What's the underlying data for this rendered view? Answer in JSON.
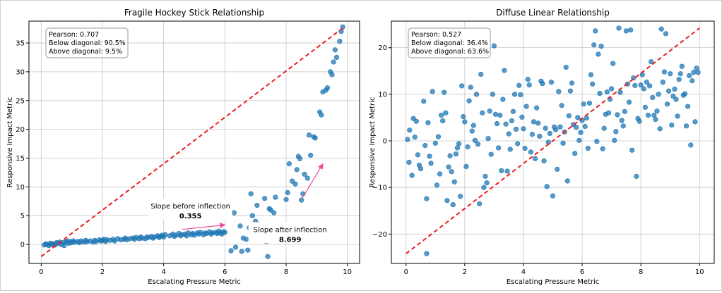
{
  "chart_data": [
    {
      "type": "scatter",
      "title": "Fragile Hockey Stick Relationship",
      "xlabel": "Escalating Pressure Metric",
      "ylabel": "Responsive Impact Metric",
      "xlim": [
        -0.4,
        10.4
      ],
      "ylim": [
        -3.3,
        38.8
      ],
      "xticks": [
        0,
        2,
        4,
        6,
        8,
        10
      ],
      "yticks": [
        0,
        5,
        10,
        15,
        20,
        25,
        30,
        35
      ],
      "grid": true,
      "point_color": "#1f77b4",
      "reference_line": {
        "x": [
          0,
          9.9
        ],
        "y": [
          -2.1,
          37.8
        ],
        "color": "#ee1c1c",
        "style": "dashed",
        "label": "diagonal"
      },
      "stats_box": [
        "Pearson: 0.707",
        "Below diagonal: 90.5%",
        "Above diagonal: 9.5%"
      ],
      "annotations": [
        {
          "label": "Slope before inflection",
          "value": "0.355",
          "arrow_from": [
            4.6,
            2.6
          ],
          "arrow_to": [
            6.0,
            3.4
          ],
          "arrow_color": "#e8519a"
        },
        {
          "label": "Slope after inflection",
          "value": "8.699",
          "arrow_from": [
            8.5,
            7.8
          ],
          "arrow_to": [
            9.2,
            14.0
          ],
          "arrow_color": "#e8519a"
        }
      ],
      "points": [
        [
          0.1,
          -0.1
        ],
        [
          0.15,
          0.1
        ],
        [
          0.2,
          0.0
        ],
        [
          0.25,
          -0.2
        ],
        [
          0.3,
          0.2
        ],
        [
          0.35,
          0.0
        ],
        [
          0.4,
          0.1
        ],
        [
          0.45,
          -0.1
        ],
        [
          0.5,
          0.3
        ],
        [
          0.55,
          0.2
        ],
        [
          0.6,
          0.4
        ],
        [
          0.65,
          0.0
        ],
        [
          0.7,
          0.3
        ],
        [
          0.75,
          -0.2
        ],
        [
          0.8,
          0.4
        ],
        [
          0.85,
          0.6
        ],
        [
          0.9,
          0.2
        ],
        [
          0.95,
          0.5
        ],
        [
          1.0,
          0.3
        ],
        [
          1.05,
          0.6
        ],
        [
          1.1,
          0.4
        ],
        [
          1.2,
          0.5
        ],
        [
          1.25,
          0.3
        ],
        [
          1.3,
          0.6
        ],
        [
          1.4,
          0.4
        ],
        [
          1.45,
          0.7
        ],
        [
          1.5,
          0.5
        ],
        [
          1.6,
          0.6
        ],
        [
          1.7,
          0.4
        ],
        [
          1.75,
          0.7
        ],
        [
          1.8,
          0.5
        ],
        [
          1.9,
          0.8
        ],
        [
          1.95,
          0.6
        ],
        [
          2.0,
          0.7
        ],
        [
          2.05,
          0.9
        ],
        [
          2.1,
          0.5
        ],
        [
          2.15,
          0.8
        ],
        [
          2.25,
          0.7
        ],
        [
          2.35,
          0.9
        ],
        [
          2.4,
          0.6
        ],
        [
          2.5,
          1.0
        ],
        [
          2.6,
          0.8
        ],
        [
          2.7,
          0.9
        ],
        [
          2.75,
          1.1
        ],
        [
          2.8,
          0.8
        ],
        [
          2.9,
          1.0
        ],
        [
          3.0,
          1.1
        ],
        [
          3.05,
          0.9
        ],
        [
          3.1,
          1.2
        ],
        [
          3.2,
          1.0
        ],
        [
          3.25,
          1.3
        ],
        [
          3.3,
          1.1
        ],
        [
          3.4,
          1.0
        ],
        [
          3.45,
          1.3
        ],
        [
          3.5,
          1.2
        ],
        [
          3.6,
          1.4
        ],
        [
          3.65,
          1.1
        ],
        [
          3.7,
          1.3
        ],
        [
          3.8,
          1.5
        ],
        [
          3.85,
          1.2
        ],
        [
          3.9,
          1.4
        ],
        [
          3.95,
          1.6
        ],
        [
          4.0,
          1.3
        ],
        [
          4.05,
          1.7
        ],
        [
          4.2,
          1.5
        ],
        [
          4.3,
          1.8
        ],
        [
          4.35,
          1.4
        ],
        [
          4.4,
          1.6
        ],
        [
          4.5,
          1.9
        ],
        [
          4.55,
          1.5
        ],
        [
          4.6,
          1.7
        ],
        [
          4.7,
          1.8
        ],
        [
          4.75,
          1.5
        ],
        [
          4.8,
          2.0
        ],
        [
          4.9,
          1.7
        ],
        [
          4.95,
          1.9
        ],
        [
          5.0,
          1.6
        ],
        [
          5.1,
          2.0
        ],
        [
          5.15,
          1.8
        ],
        [
          5.2,
          2.1
        ],
        [
          5.3,
          1.7
        ],
        [
          5.35,
          2.0
        ],
        [
          5.4,
          1.9
        ],
        [
          5.5,
          2.2
        ],
        [
          5.55,
          1.8
        ],
        [
          5.6,
          2.0
        ],
        [
          5.7,
          2.1
        ],
        [
          5.75,
          1.9
        ],
        [
          5.8,
          2.3
        ],
        [
          5.85,
          2.0
        ],
        [
          5.9,
          1.8
        ],
        [
          5.95,
          2.2
        ],
        [
          6.0,
          2.1
        ],
        [
          6.2,
          -1.1
        ],
        [
          6.3,
          5.5
        ],
        [
          6.35,
          -0.5
        ],
        [
          6.5,
          3.2
        ],
        [
          6.55,
          -1.2
        ],
        [
          6.6,
          1.1
        ],
        [
          6.7,
          0.9
        ],
        [
          6.75,
          -1.0
        ],
        [
          6.8,
          2.9
        ],
        [
          6.85,
          8.8
        ],
        [
          6.9,
          5.0
        ],
        [
          7.0,
          4.0
        ],
        [
          7.05,
          6.8
        ],
        [
          7.1,
          3.5
        ],
        [
          7.2,
          2.4
        ],
        [
          7.25,
          1.0
        ],
        [
          7.3,
          8.0
        ],
        [
          7.35,
          0.5
        ],
        [
          7.4,
          -2.1
        ],
        [
          7.45,
          6.2
        ],
        [
          7.5,
          6.0
        ],
        [
          7.6,
          5.5
        ],
        [
          7.65,
          8.2
        ],
        [
          8.0,
          7.8
        ],
        [
          8.05,
          9.0
        ],
        [
          8.1,
          14.0
        ],
        [
          8.2,
          11.0
        ],
        [
          8.3,
          10.5
        ],
        [
          8.35,
          13.0
        ],
        [
          8.4,
          15.3
        ],
        [
          8.45,
          14.9
        ],
        [
          8.5,
          7.7
        ],
        [
          8.55,
          8.8
        ],
        [
          8.6,
          12.2
        ],
        [
          8.7,
          11.5
        ],
        [
          8.75,
          19.0
        ],
        [
          8.8,
          15.5
        ],
        [
          8.9,
          18.7
        ],
        [
          8.95,
          18.5
        ],
        [
          9.1,
          23.0
        ],
        [
          9.15,
          22.5
        ],
        [
          9.2,
          26.5
        ],
        [
          9.3,
          26.8
        ],
        [
          9.35,
          27.2
        ],
        [
          9.45,
          30.0
        ],
        [
          9.5,
          29.5
        ],
        [
          9.55,
          31.7
        ],
        [
          9.6,
          33.8
        ],
        [
          9.65,
          32.5
        ],
        [
          9.75,
          35.3
        ],
        [
          9.8,
          37.0
        ],
        [
          9.85,
          37.8
        ]
      ]
    },
    {
      "type": "scatter",
      "title": "Diffuse Linear Relationship",
      "xlabel": "Escalating Pressure Metric",
      "ylabel": "Responsive Impact Metric",
      "xlim": [
        -0.5,
        10.5
      ],
      "ylim": [
        -26.3,
        25.7
      ],
      "xticks": [
        0,
        2,
        4,
        6,
        8,
        10
      ],
      "yticks": [
        -20,
        -10,
        0,
        10,
        20
      ],
      "ytick_labels": [
        "−20",
        "−10",
        "0",
        "10",
        "20"
      ],
      "grid": true,
      "point_color": "#1f77b4",
      "reference_line": {
        "x": [
          0,
          10
        ],
        "y": [
          -24.2,
          24.2
        ],
        "color": "#ee1c1c",
        "style": "dashed",
        "label": "diagonal"
      },
      "stats_box": [
        "Pearson: 0.527",
        "Below diagonal: 36.4%",
        "Above diagonal: 63.6%"
      ],
      "points": [
        [
          0.05,
          0.3
        ],
        [
          0.1,
          -4.6
        ],
        [
          0.12,
          2.3
        ],
        [
          0.2,
          -7.4
        ],
        [
          0.25,
          4.8
        ],
        [
          0.3,
          0.8
        ],
        [
          0.35,
          4.2
        ],
        [
          0.4,
          -3.0
        ],
        [
          0.45,
          -5.2
        ],
        [
          0.5,
          -6.0
        ],
        [
          0.6,
          8.5
        ],
        [
          0.65,
          -1.0
        ],
        [
          0.7,
          -12.4
        ],
        [
          0.75,
          3.9
        ],
        [
          0.8,
          -3.3
        ],
        [
          0.85,
          -4.8
        ],
        [
          0.7,
          -24.2
        ],
        [
          0.9,
          10.6
        ],
        [
          1.0,
          -0.5
        ],
        [
          1.05,
          -9.5
        ],
        [
          1.1,
          0.9
        ],
        [
          1.15,
          -7.1
        ],
        [
          1.2,
          5.5
        ],
        [
          1.25,
          4.3
        ],
        [
          1.3,
          10.4
        ],
        [
          1.35,
          6.0
        ],
        [
          1.4,
          -12.8
        ],
        [
          1.45,
          -5.6
        ],
        [
          1.5,
          -3.2
        ],
        [
          1.55,
          -6.6
        ],
        [
          1.6,
          -13.7
        ],
        [
          1.65,
          -8.8
        ],
        [
          1.7,
          -2.8
        ],
        [
          1.75,
          -1.5
        ],
        [
          1.8,
          -0.6
        ],
        [
          1.85,
          -11.9
        ],
        [
          1.9,
          11.8
        ],
        [
          1.95,
          5.2
        ],
        [
          2.0,
          4.1
        ],
        [
          2.05,
          -5.5
        ],
        [
          2.1,
          -1.3
        ],
        [
          2.15,
          8.6
        ],
        [
          2.2,
          11.5
        ],
        [
          2.25,
          2.1
        ],
        [
          2.3,
          3.3
        ],
        [
          2.35,
          0.1
        ],
        [
          2.4,
          10.0
        ],
        [
          2.45,
          -0.7
        ],
        [
          2.5,
          -13.5
        ],
        [
          2.55,
          14.3
        ],
        [
          2.6,
          6.0
        ],
        [
          2.65,
          -10.0
        ],
        [
          2.7,
          -7.6
        ],
        [
          2.75,
          -9.0
        ],
        [
          2.8,
          0.5
        ],
        [
          2.85,
          6.4
        ],
        [
          2.9,
          -2.9
        ],
        [
          2.95,
          10.0
        ],
        [
          3.0,
          20.4
        ],
        [
          3.05,
          5.7
        ],
        [
          3.1,
          3.7
        ],
        [
          3.15,
          -1.5
        ],
        [
          3.2,
          5.5
        ],
        [
          3.25,
          -6.4
        ],
        [
          3.3,
          8.9
        ],
        [
          3.35,
          15.1
        ],
        [
          3.4,
          3.6
        ],
        [
          3.45,
          -6.5
        ],
        [
          3.5,
          1.5
        ],
        [
          3.55,
          -1.8
        ],
        [
          3.6,
          4.3
        ],
        [
          3.65,
          6.3
        ],
        [
          3.7,
          10.0
        ],
        [
          3.75,
          2.5
        ],
        [
          3.8,
          -0.6
        ],
        [
          3.85,
          11.9
        ],
        [
          3.9,
          9.9
        ],
        [
          3.95,
          5.1
        ],
        [
          4.0,
          2.6
        ],
        [
          4.05,
          -1.6
        ],
        [
          4.1,
          7.4
        ],
        [
          4.15,
          13.2
        ],
        [
          4.2,
          12.0
        ],
        [
          4.25,
          -2.4
        ],
        [
          4.3,
          1.4
        ],
        [
          4.35,
          4.1
        ],
        [
          4.4,
          -3.8
        ],
        [
          4.45,
          7.1
        ],
        [
          4.5,
          3.8
        ],
        [
          4.55,
          1.0
        ],
        [
          4.6,
          12.8
        ],
        [
          4.65,
          12.3
        ],
        [
          4.7,
          -4.3
        ],
        [
          4.75,
          2.7
        ],
        [
          4.8,
          -9.8
        ],
        [
          4.85,
          -0.3
        ],
        [
          4.9,
          1.6
        ],
        [
          4.95,
          12.6
        ],
        [
          5.0,
          -11.8
        ],
        [
          5.05,
          3.0
        ],
        [
          5.1,
          2.4
        ],
        [
          5.15,
          -6.1
        ],
        [
          5.2,
          10.6
        ],
        [
          5.25,
          3.0
        ],
        [
          5.3,
          7.6
        ],
        [
          5.35,
          -0.5
        ],
        [
          5.4,
          1.9
        ],
        [
          5.45,
          15.8
        ],
        [
          5.5,
          -8.6
        ],
        [
          5.55,
          5.4
        ],
        [
          5.6,
          10.7
        ],
        [
          5.65,
          12.4
        ],
        [
          5.7,
          3.5
        ],
        [
          5.75,
          -2.7
        ],
        [
          5.8,
          2.9
        ],
        [
          5.85,
          5.0
        ],
        [
          5.9,
          0.1
        ],
        [
          5.95,
          1.8
        ],
        [
          6.0,
          4.4
        ],
        [
          6.05,
          7.9
        ],
        [
          6.1,
          3.1
        ],
        [
          6.15,
          4.9
        ],
        [
          6.2,
          -1.6
        ],
        [
          6.25,
          8.1
        ],
        [
          6.3,
          14.2
        ],
        [
          6.35,
          12.2
        ],
        [
          6.4,
          20.6
        ],
        [
          6.45,
          23.6
        ],
        [
          6.5,
          -0.1
        ],
        [
          6.55,
          18.6
        ],
        [
          6.6,
          10.2
        ],
        [
          6.65,
          20.3
        ],
        [
          6.7,
          -1.7
        ],
        [
          6.75,
          2.7
        ],
        [
          6.8,
          5.7
        ],
        [
          6.85,
          10.5
        ],
        [
          6.9,
          6.0
        ],
        [
          6.95,
          8.9
        ],
        [
          7.0,
          11.2
        ],
        [
          7.05,
          16.6
        ],
        [
          7.1,
          0.1
        ],
        [
          7.15,
          2.0
        ],
        [
          7.2,
          5.6
        ],
        [
          7.25,
          24.2
        ],
        [
          7.3,
          10.4
        ],
        [
          7.35,
          4.4
        ],
        [
          7.4,
          3.2
        ],
        [
          7.45,
          6.3
        ],
        [
          7.5,
          23.6
        ],
        [
          7.55,
          12.2
        ],
        [
          7.6,
          8.3
        ],
        [
          7.65,
          23.8
        ],
        [
          7.7,
          -2.0
        ],
        [
          7.75,
          13.5
        ],
        [
          7.8,
          11.9
        ],
        [
          7.85,
          -7.6
        ],
        [
          7.9,
          4.8
        ],
        [
          7.95,
          4.2
        ],
        [
          8.0,
          12.0
        ],
        [
          8.05,
          14.2
        ],
        [
          8.1,
          11.2
        ],
        [
          8.15,
          7.2
        ],
        [
          8.2,
          12.6
        ],
        [
          8.25,
          5.5
        ],
        [
          8.3,
          11.8
        ],
        [
          8.35,
          17.0
        ],
        [
          8.4,
          9.3
        ],
        [
          8.45,
          5.5
        ],
        [
          8.5,
          4.6
        ],
        [
          8.55,
          6.4
        ],
        [
          8.6,
          10.0
        ],
        [
          8.65,
          2.6
        ],
        [
          8.7,
          24.0
        ],
        [
          8.75,
          12.6
        ],
        [
          8.8,
          14.8
        ],
        [
          8.85,
          23.0
        ],
        [
          8.9,
          7.9
        ],
        [
          8.95,
          10.7
        ],
        [
          9.0,
          14.4
        ],
        [
          9.05,
          3.4
        ],
        [
          9.1,
          9.6
        ],
        [
          9.15,
          11.1
        ],
        [
          9.2,
          8.9
        ],
        [
          9.25,
          5.3
        ],
        [
          9.3,
          13.2
        ],
        [
          9.35,
          14.4
        ],
        [
          9.4,
          16.0
        ],
        [
          9.45,
          9.8
        ],
        [
          9.5,
          10.1
        ],
        [
          9.55,
          3.2
        ],
        [
          9.6,
          7.4
        ],
        [
          9.65,
          14.0
        ],
        [
          9.7,
          -0.9
        ],
        [
          9.75,
          12.9
        ],
        [
          9.8,
          14.7
        ],
        [
          9.85,
          4.1
        ],
        [
          9.9,
          15.6
        ],
        [
          9.95,
          14.7
        ]
      ]
    }
  ]
}
